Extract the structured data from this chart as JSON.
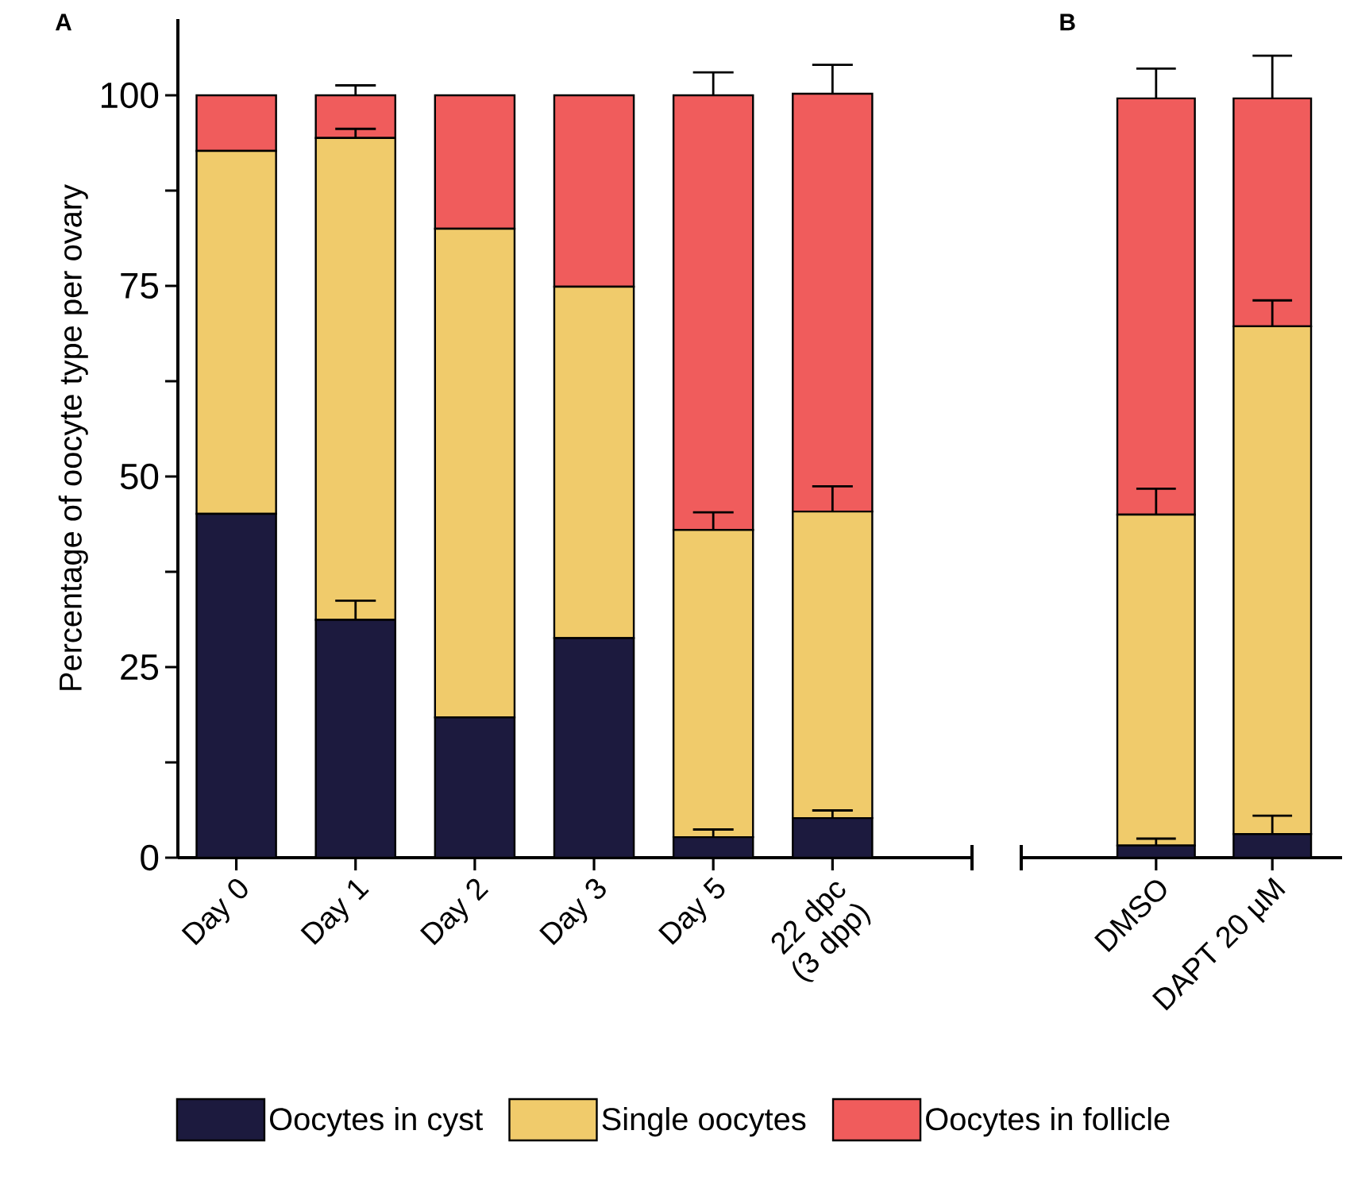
{
  "chart_data": [
    {
      "type": "bar",
      "title": "A",
      "stacked": true,
      "ylabel": "Percentage of oocyte type per ovary",
      "categories": [
        "Day 0",
        "Day 1",
        "Day 2",
        "Day 3",
        "Day 5",
        "22 dpc (3 dpp)"
      ],
      "series": [
        {
          "name": "Oocytes in cyst",
          "color": "#1c1a3e",
          "values": [
            45.1,
            31.2,
            18.4,
            28.8,
            2.7,
            5.2
          ],
          "errors": [
            null,
            [
              31.2,
              33.7
            ],
            null,
            null,
            [
              2.7,
              3.7
            ],
            [
              5.2,
              6.2
            ]
          ]
        },
        {
          "name": "Single oocytes",
          "color": "#f0cb6b",
          "values": [
            47.6,
            63.2,
            64.1,
            46.1,
            40.3,
            40.2
          ],
          "errors": [
            null,
            [
              94.4,
              95.6
            ],
            null,
            null,
            [
              43.0,
              45.3
            ],
            [
              45.4,
              48.7
            ]
          ]
        },
        {
          "name": "Oocytes in follicle",
          "color": "#f05c5c",
          "values": [
            7.3,
            5.6,
            17.5,
            25.1,
            57.0,
            54.8
          ],
          "errors": [
            null,
            [
              100.0,
              101.3
            ],
            null,
            null,
            [
              100.0,
              103.0
            ],
            [
              100.2,
              104.0
            ]
          ]
        }
      ],
      "ylim": [
        0,
        110
      ],
      "yticks": [
        0,
        {
          "value": 12.5,
          "label": null
        },
        25,
        {
          "value": 37.5,
          "label": null
        },
        50,
        {
          "value": 62.5,
          "label": null
        },
        75,
        {
          "value": 87.5,
          "label": null
        },
        100
      ],
      "legend": "bottom"
    },
    {
      "type": "bar",
      "title": "B",
      "stacked": true,
      "categories": [
        "DMSO",
        "DAPT 20 µM"
      ],
      "series": [
        {
          "color": "#1c1a3e",
          "values": [
            1.6,
            3.1
          ],
          "errors": [
            [
              1.6,
              2.5
            ],
            [
              3.1,
              5.5
            ]
          ]
        },
        {
          "color": "#f0cb6b",
          "values": [
            43.4,
            66.6
          ],
          "errors": [
            [
              45.0,
              48.4
            ],
            [
              69.7,
              73.1
            ]
          ]
        },
        {
          "color": "#f05c5c",
          "values": [
            54.6,
            29.9
          ],
          "errors": [
            [
              99.6,
              103.5
            ],
            [
              99.6,
              105.2
            ]
          ]
        }
      ],
      "yticks": [
        0,
        25,
        50,
        75,
        100
      ],
      "tick_labels": "x",
      "legend": false
    }
  ]
}
